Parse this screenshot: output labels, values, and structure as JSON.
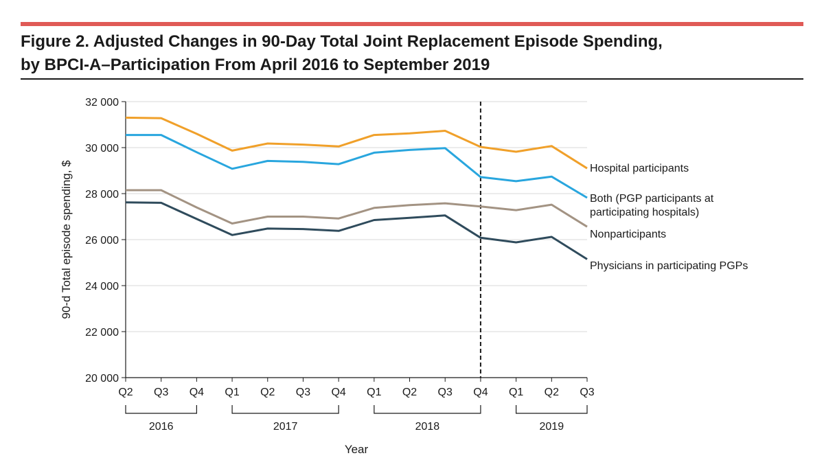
{
  "figure": {
    "title_line1": "Figure 2. Adjusted Changes in 90-Day Total Joint Replacement Episode Spending,",
    "title_line2": "by BPCI-A–Participation From April 2016 to September 2019"
  },
  "colors": {
    "accent_rule": "#e05a56",
    "hospital": "#f0a02a",
    "both": "#29a6de",
    "nonparticipants": "#a39383",
    "physicians": "#2f4b5c"
  },
  "chart_data": {
    "type": "line",
    "title": "Figure 2. Adjusted Changes in 90-Day Total Joint Replacement Episode Spending, by BPCI-A–Participation From April 2016 to September 2019",
    "xlabel": "Year",
    "ylabel": "90-d Total episode spending, $",
    "ylim": [
      20000,
      32000
    ],
    "yticks": [
      20000,
      22000,
      24000,
      26000,
      28000,
      30000,
      32000
    ],
    "ytick_labels": [
      "20 000",
      "22 000",
      "24 000",
      "26 000",
      "28 000",
      "30 000",
      "32 000"
    ],
    "grid": true,
    "categories": [
      "Q2",
      "Q3",
      "Q4",
      "Q1",
      "Q2",
      "Q3",
      "Q4",
      "Q1",
      "Q2",
      "Q3",
      "Q4",
      "Q1",
      "Q2",
      "Q3"
    ],
    "year_groups": [
      {
        "label": "2016",
        "start": 0,
        "end": 2
      },
      {
        "label": "2017",
        "start": 3,
        "end": 6
      },
      {
        "label": "2018",
        "start": 7,
        "end": 10
      },
      {
        "label": "2019",
        "start": 11,
        "end": 13
      }
    ],
    "vertical_marker_index": 10,
    "series": [
      {
        "name": "Hospital participants",
        "label_lines": [
          "Hospital participants"
        ],
        "color_key": "hospital",
        "values": [
          31300,
          31280,
          30600,
          29870,
          30180,
          30130,
          30050,
          30550,
          30620,
          30730,
          30030,
          29820,
          30070,
          29100
        ]
      },
      {
        "name": "Both (PGP participants at participating hospitals)",
        "label_lines": [
          "Both (PGP participants at",
          "participating hospitals)"
        ],
        "color_key": "both",
        "values": [
          30550,
          30550,
          29800,
          29080,
          29420,
          29380,
          29280,
          29780,
          29900,
          29980,
          28720,
          28540,
          28740,
          27820
        ]
      },
      {
        "name": "Nonparticipants",
        "label_lines": [
          "Nonparticipants"
        ],
        "color_key": "nonparticipants",
        "values": [
          28150,
          28150,
          27400,
          26700,
          27000,
          27000,
          26920,
          27380,
          27500,
          27580,
          27440,
          27280,
          27520,
          26560
        ]
      },
      {
        "name": "Physicians in participating PGPs",
        "label_lines": [
          "Physicians in participating PGPs"
        ],
        "color_key": "physicians",
        "values": [
          27620,
          27600,
          26900,
          26200,
          26480,
          26460,
          26380,
          26850,
          26950,
          27050,
          26080,
          25880,
          26120,
          25150
        ]
      }
    ]
  }
}
